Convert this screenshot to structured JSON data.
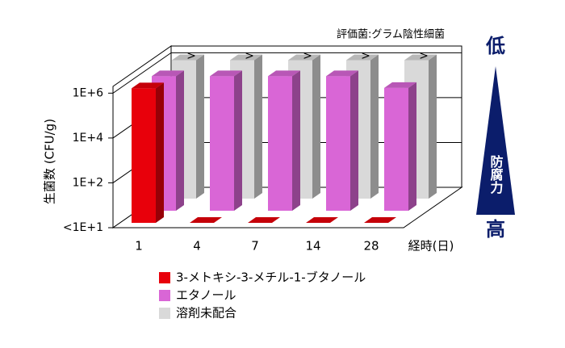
{
  "chart_data": {
    "type": "bar3d",
    "y_label": "生菌数 (CFU/g)",
    "x_label": "経時(日)",
    "annotation": "評価菌:グラム陰性細菌",
    "exceed_mark": ">",
    "scale_top": "低",
    "scale_middle": "防腐力",
    "scale_bottom": "高",
    "log_scale": true,
    "categories": [
      "1",
      "4",
      "7",
      "14",
      "28"
    ],
    "series": [
      {
        "name": "3-メトキシ-3-メチル-1-ブタノール",
        "color": "#e8000b",
        "values": [
          1000000,
          1,
          1,
          1,
          1
        ]
      },
      {
        "name": "エタノール",
        "color": "#d966d6",
        "values": [
          1000000,
          1000000,
          1000000,
          1000000,
          300000
        ]
      },
      {
        "name": "溶剤未配合",
        "color": "#d9d9d9",
        "values": [
          1500000,
          1500000,
          1500000,
          1500000,
          1500000
        ],
        "exceeds": true
      }
    ],
    "ylim": [
      1,
      2000000
    ],
    "yticks": [
      {
        "value": 1,
        "label": "<1E+1"
      },
      {
        "value": 100,
        "label": "1E+2"
      },
      {
        "value": 10000,
        "label": "1E+4"
      },
      {
        "value": 1000000,
        "label": "1E+6"
      }
    ],
    "grid": true
  }
}
